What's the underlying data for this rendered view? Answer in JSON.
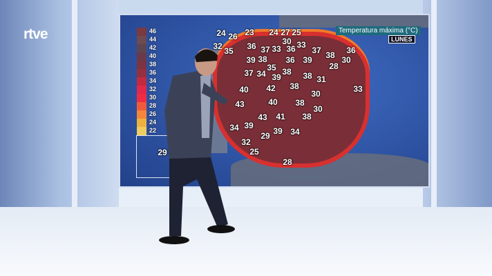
{
  "logo": "rtve",
  "map": {
    "title": "Temperatura máxima (°C)",
    "day": "LUNES",
    "legend": [
      "46",
      "44",
      "42",
      "40",
      "38",
      "36",
      "34",
      "32",
      "30",
      "28",
      "26",
      "24",
      "22"
    ],
    "legend_colors": [
      "#7a3a3f",
      "#6e4a52",
      "#5e4650",
      "#6a3a48",
      "#7a3442",
      "#943040",
      "#c22a3e",
      "#e0284a",
      "#ee2d45",
      "#f05a3a",
      "#f3863a",
      "#eeb040",
      "#efcc60"
    ],
    "temperatures": [
      "24",
      "26",
      "23",
      "24",
      "27",
      "25",
      "30",
      "32",
      "35",
      "36",
      "37",
      "33",
      "36",
      "33",
      "37",
      "38",
      "36",
      "30",
      "39",
      "38",
      "36",
      "39",
      "28",
      "35",
      "37",
      "34",
      "39",
      "38",
      "38",
      "31",
      "33",
      "40",
      "42",
      "38",
      "30",
      "43",
      "40",
      "38",
      "30",
      "43",
      "41",
      "38",
      "34",
      "39",
      "39",
      "34",
      "29",
      "32",
      "25",
      "28",
      "29"
    ]
  }
}
